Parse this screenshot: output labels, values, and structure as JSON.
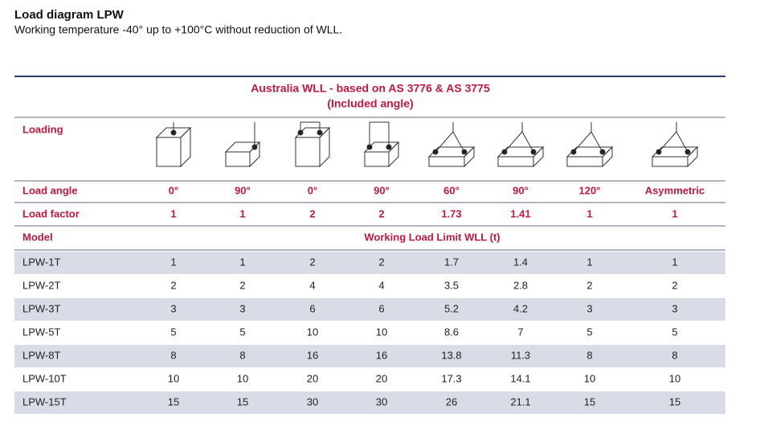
{
  "header": {
    "title": "Load diagram LPW",
    "subtitle": "Working temperature -40° up to +100°C without reduction of WLL."
  },
  "table": {
    "banner": [
      "Australia WLL  - based on AS 3776 & AS 3775",
      "(Included angle)"
    ],
    "loading_label": "Loading",
    "load_angle": {
      "label": "Load angle",
      "values": [
        "0°",
        "90°",
        "0°",
        "90°",
        "60°",
        "90°",
        "120°",
        "Asymmetric"
      ]
    },
    "load_factor": {
      "label": "Load factor",
      "values": [
        1,
        1,
        2,
        2,
        1.73,
        1.41,
        1,
        1
      ]
    },
    "model_label": "Model",
    "wll_label": "Working Load Limit WLL (t)",
    "rows": [
      [
        "LPW-1T",
        1,
        1,
        2,
        2,
        1.7,
        1.4,
        1,
        1
      ],
      [
        "LPW-2T",
        2,
        2,
        4,
        4,
        3.5,
        2.8,
        2,
        2
      ],
      [
        "LPW-3T",
        3,
        3,
        6,
        6,
        5.2,
        4.2,
        3,
        3
      ],
      [
        "LPW-5T",
        5,
        5,
        10,
        10,
        8.6,
        7,
        5,
        5
      ],
      [
        "LPW-8T",
        8,
        8,
        16,
        16,
        13.8,
        11.3,
        8,
        8
      ],
      [
        "LPW-10T",
        10,
        10,
        20,
        20,
        17.3,
        14.1,
        10,
        10
      ],
      [
        "LPW-15T",
        15,
        15,
        30,
        30,
        26,
        21.1,
        15,
        15
      ]
    ]
  }
}
